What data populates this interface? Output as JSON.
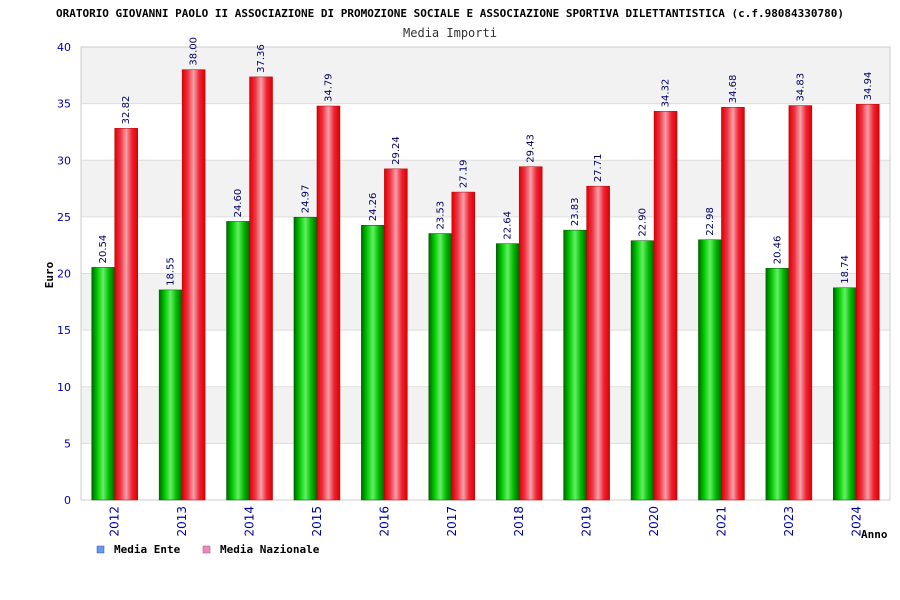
{
  "chart_data": {
    "type": "bar",
    "title": "ORATORIO GIOVANNI PAOLO II ASSOCIAZIONE DI PROMOZIONE SOCIALE E ASSOCIAZIONE SPORTIVA DILETTANTISTICA (c.f.98084330780)",
    "subtitle": "Media Importi",
    "xlabel": "Anno",
    "ylabel": "Euro",
    "ylim": [
      0,
      40
    ],
    "yticks": [
      0,
      5,
      10,
      15,
      20,
      25,
      30,
      35,
      40
    ],
    "grid": true,
    "legend_position": "bottom-left",
    "categories": [
      "2012",
      "2013",
      "2014",
      "2015",
      "2016",
      "2017",
      "2018",
      "2019",
      "2020",
      "2021",
      "2023",
      "2024"
    ],
    "series": [
      {
        "name": "Media Ente",
        "color": "#00aa00",
        "legend_color": "#6699ee",
        "values": [
          20.54,
          18.55,
          24.6,
          24.97,
          24.26,
          23.53,
          22.64,
          23.83,
          22.9,
          22.98,
          20.46,
          18.74
        ]
      },
      {
        "name": "Media Nazionale",
        "color": "#ee1111",
        "legend_color": "#ee88bb",
        "values": [
          32.82,
          38.0,
          37.36,
          34.79,
          29.24,
          27.19,
          29.43,
          27.71,
          34.32,
          34.68,
          34.83,
          34.94
        ]
      }
    ]
  }
}
